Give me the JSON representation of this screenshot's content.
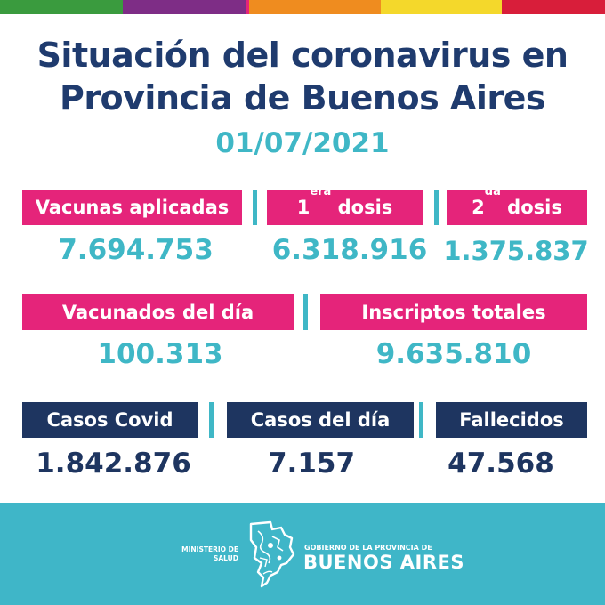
{
  "colors": {
    "stripes": [
      "#3a9b3e",
      "#7e2d86",
      "#e5247a",
      "#ef8c1f",
      "#f4d82b",
      "#d81e3a"
    ],
    "pink": "#e5247a",
    "navy": "#1e3560",
    "teal": "#3fb7c6"
  },
  "header": {
    "title_line1": "Situación del coronavirus en",
    "title_line2": "Provincia de Buenos Aires",
    "date": "01/07/2021"
  },
  "vacunas": {
    "aplicadas_label": "Vacunas aplicadas",
    "aplicadas_value": "7.694.753",
    "primera_num": "1",
    "primera_sup": "era",
    "primera_word": "dosis",
    "primera_value": "6.318.916",
    "segunda_num": "2",
    "segunda_sup": "da",
    "segunda_word": "dosis",
    "segunda_value": "1.375.837"
  },
  "registro": {
    "vacunados_dia_label": "Vacunados del día",
    "vacunados_dia_value": "100.313",
    "inscriptos_label": "Inscriptos totales",
    "inscriptos_value": "9.635.810"
  },
  "casos": {
    "covid_label": "Casos Covid",
    "covid_value": "1.842.876",
    "dia_label": "Casos del día",
    "dia_value": "7.157",
    "fallecidos_label": "Fallecidos",
    "fallecidos_value": "47.568"
  },
  "footer": {
    "ministerio_line1": "MINISTERIO DE",
    "ministerio_line2": "SALUD",
    "gobierno_line": "GOBIERNO DE LA PROVINCIA DE",
    "provincia_name": "BUENOS AIRES",
    "logo_icon": "province-map-logo-icon"
  }
}
